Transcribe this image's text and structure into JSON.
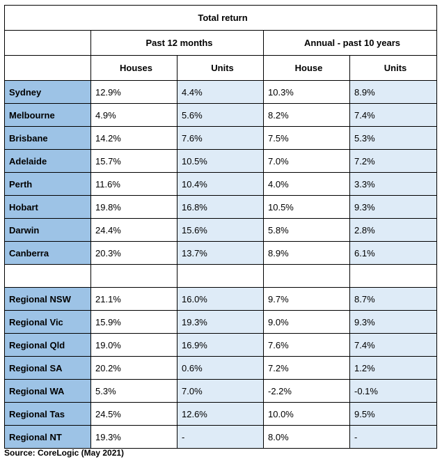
{
  "title": "Total return",
  "periods": [
    "Past 12 months",
    "Annual - past 10 years"
  ],
  "columns": [
    "Houses",
    "Units",
    "House",
    "Units"
  ],
  "capitals": [
    {
      "name": "Sydney",
      "values": [
        "12.9%",
        "4.4%",
        "10.3%",
        "8.9%"
      ]
    },
    {
      "name": "Melbourne",
      "values": [
        "4.9%",
        "5.6%",
        "8.2%",
        "7.4%"
      ]
    },
    {
      "name": "Brisbane",
      "values": [
        "14.2%",
        "7.6%",
        "7.5%",
        "5.3%"
      ]
    },
    {
      "name": "Adelaide",
      "values": [
        "15.7%",
        "10.5%",
        "7.0%",
        "7.2%"
      ]
    },
    {
      "name": "Perth",
      "values": [
        "11.6%",
        "10.4%",
        "4.0%",
        "3.3%"
      ]
    },
    {
      "name": "Hobart",
      "values": [
        "19.8%",
        "16.8%",
        "10.5%",
        "9.3%"
      ]
    },
    {
      "name": "Darwin",
      "values": [
        "24.4%",
        "15.6%",
        "5.8%",
        "2.8%"
      ]
    },
    {
      "name": "Canberra",
      "values": [
        "20.3%",
        "13.7%",
        "8.9%",
        "6.1%"
      ]
    }
  ],
  "regional": [
    {
      "name": "Regional NSW",
      "values": [
        "21.1%",
        "16.0%",
        "9.7%",
        "8.7%"
      ]
    },
    {
      "name": "Regional Vic",
      "values": [
        "15.9%",
        "19.3%",
        "9.0%",
        "9.3%"
      ]
    },
    {
      "name": "Regional Qld",
      "values": [
        "19.0%",
        "16.9%",
        "7.6%",
        "7.4%"
      ]
    },
    {
      "name": "Regional SA",
      "values": [
        "20.2%",
        "0.6%",
        "7.2%",
        "1.2%"
      ]
    },
    {
      "name": "Regional WA",
      "values": [
        "5.3%",
        "7.0%",
        "-2.2%",
        "-0.1%"
      ]
    },
    {
      "name": "Regional Tas",
      "values": [
        "24.5%",
        "12.6%",
        "10.0%",
        "9.5%"
      ]
    },
    {
      "name": "Regional NT",
      "values": [
        "19.3%",
        "-",
        "8.0%",
        "-"
      ]
    }
  ],
  "source": "Source: CoreLogic (May 2021)"
}
